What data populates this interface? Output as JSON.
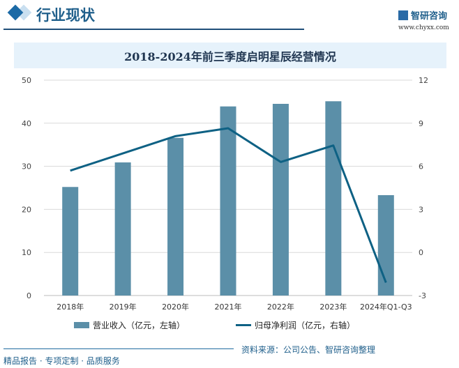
{
  "header": {
    "title": "行业现状",
    "logo_text": "智研咨询",
    "url": "www.chyxx.com"
  },
  "chart_data": {
    "type": "bar+line",
    "title": "2018-2024年前三季度启明星辰经营情况",
    "categories": [
      "2018年",
      "2019年",
      "2020年",
      "2021年",
      "2022年",
      "2023年",
      "2024年Q1-Q3"
    ],
    "series": [
      {
        "name": "营业收入（亿元，左轴）",
        "type": "bar",
        "axis": "left",
        "color": "#5b8fa8",
        "values": [
          25.2,
          30.9,
          36.6,
          43.9,
          44.5,
          45.1,
          23.3
        ]
      },
      {
        "name": "归母净利润（亿元，右轴）",
        "type": "line",
        "axis": "right",
        "color": "#0e6184",
        "values": [
          5.7,
          6.9,
          8.1,
          8.65,
          6.3,
          7.45,
          -2.1
        ]
      }
    ],
    "y_left": {
      "range": [
        0,
        50
      ],
      "ticks": [
        "0",
        "10",
        "20",
        "30",
        "40",
        "50"
      ]
    },
    "y_right": {
      "range": [
        -3,
        12
      ],
      "ticks": [
        "-3",
        "0",
        "3",
        "6",
        "9",
        "12"
      ]
    },
    "grid": true,
    "legend_placement": "bottom"
  },
  "footer": {
    "source": "资料来源：公司公告、智研咨询整理",
    "slogan": "精品报告 · 专项定制 · 品质服务"
  }
}
